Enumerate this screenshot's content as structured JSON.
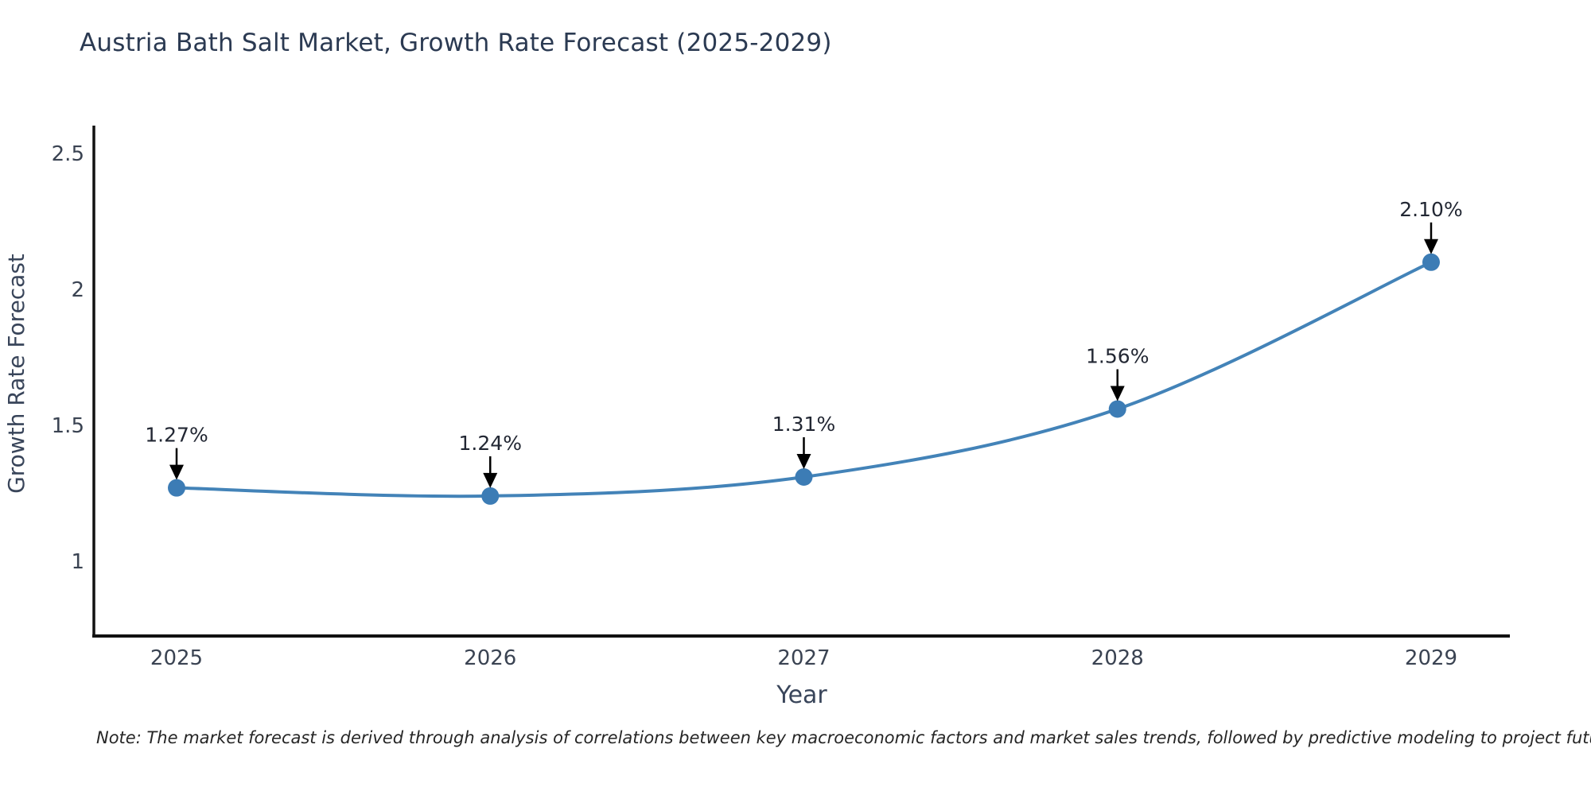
{
  "chart_data": {
    "type": "line",
    "title": "Austria Bath Salt Market, Growth Rate Forecast (2025-2029)",
    "x": [
      "2025",
      "2026",
      "2027",
      "2028",
      "2029"
    ],
    "series": [
      {
        "name": "Growth Rate Forecast",
        "values": [
          1.27,
          1.24,
          1.31,
          1.56,
          2.1
        ]
      }
    ],
    "point_labels": [
      "1.27%",
      "1.24%",
      "1.31%",
      "1.56%",
      "2.10%"
    ],
    "xlabel": "Year",
    "ylabel": "Growth Rate Forecast",
    "yticks": [
      1,
      1.5,
      2,
      2.5
    ],
    "ylim": [
      0.73,
      2.6
    ],
    "grid": false,
    "legend": "none",
    "colors": {
      "line": "#4383b8",
      "marker": "#3c7cb5",
      "axis": "#111111",
      "annotation_text": "#222733",
      "annotation_arrow": "#000000",
      "title_text": "#2b3a52",
      "tick_text": "#3a4352",
      "axis_title_text": "#39455a",
      "note_text": "#262626",
      "background": "#ffffff"
    }
  },
  "note": "Note: The market forecast is derived through analysis of correlations between key macroeconomic factors and market sales trends, followed by predictive modeling to project future sales"
}
